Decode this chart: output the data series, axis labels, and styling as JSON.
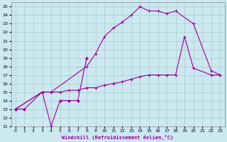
{
  "xlabel": "Windchill (Refroidissement éolien,°C)",
  "background_color": "#cce8f0",
  "line_color": "#990099",
  "grid_color": "#aacccc",
  "xlim": [
    -0.5,
    23.5
  ],
  "ylim": [
    11,
    25.5
  ],
  "xticks": [
    0,
    1,
    2,
    3,
    4,
    5,
    6,
    7,
    8,
    9,
    10,
    11,
    12,
    13,
    14,
    15,
    16,
    17,
    18,
    19,
    20,
    21,
    22,
    23
  ],
  "yticks": [
    11,
    12,
    13,
    14,
    15,
    16,
    17,
    18,
    19,
    20,
    21,
    22,
    23,
    24,
    25
  ],
  "s1_x": [
    0,
    1,
    3,
    4,
    5,
    6,
    7,
    8
  ],
  "s1_y": [
    13,
    13,
    15,
    11,
    14,
    14,
    14,
    19
  ],
  "s2_x": [
    0,
    3,
    4,
    8,
    9,
    10,
    11,
    12,
    13,
    14,
    15,
    16,
    17,
    18,
    20,
    22,
    23
  ],
  "s2_y": [
    13,
    15,
    15,
    18,
    19.5,
    21.5,
    22.5,
    23.2,
    24,
    25,
    24.5,
    24.5,
    24.2,
    24.5,
    23,
    17.5,
    17
  ],
  "s3_x": [
    0,
    3,
    4,
    5,
    6,
    7,
    8,
    9,
    10,
    11,
    12,
    13,
    14,
    15,
    16,
    17,
    18,
    19,
    20,
    22,
    23
  ],
  "s3_y": [
    13,
    15,
    15,
    15,
    15.2,
    15.2,
    15.5,
    15.5,
    15.8,
    16,
    16.2,
    16.5,
    16.8,
    17,
    17,
    17,
    17,
    21.5,
    17.8,
    17,
    17
  ]
}
